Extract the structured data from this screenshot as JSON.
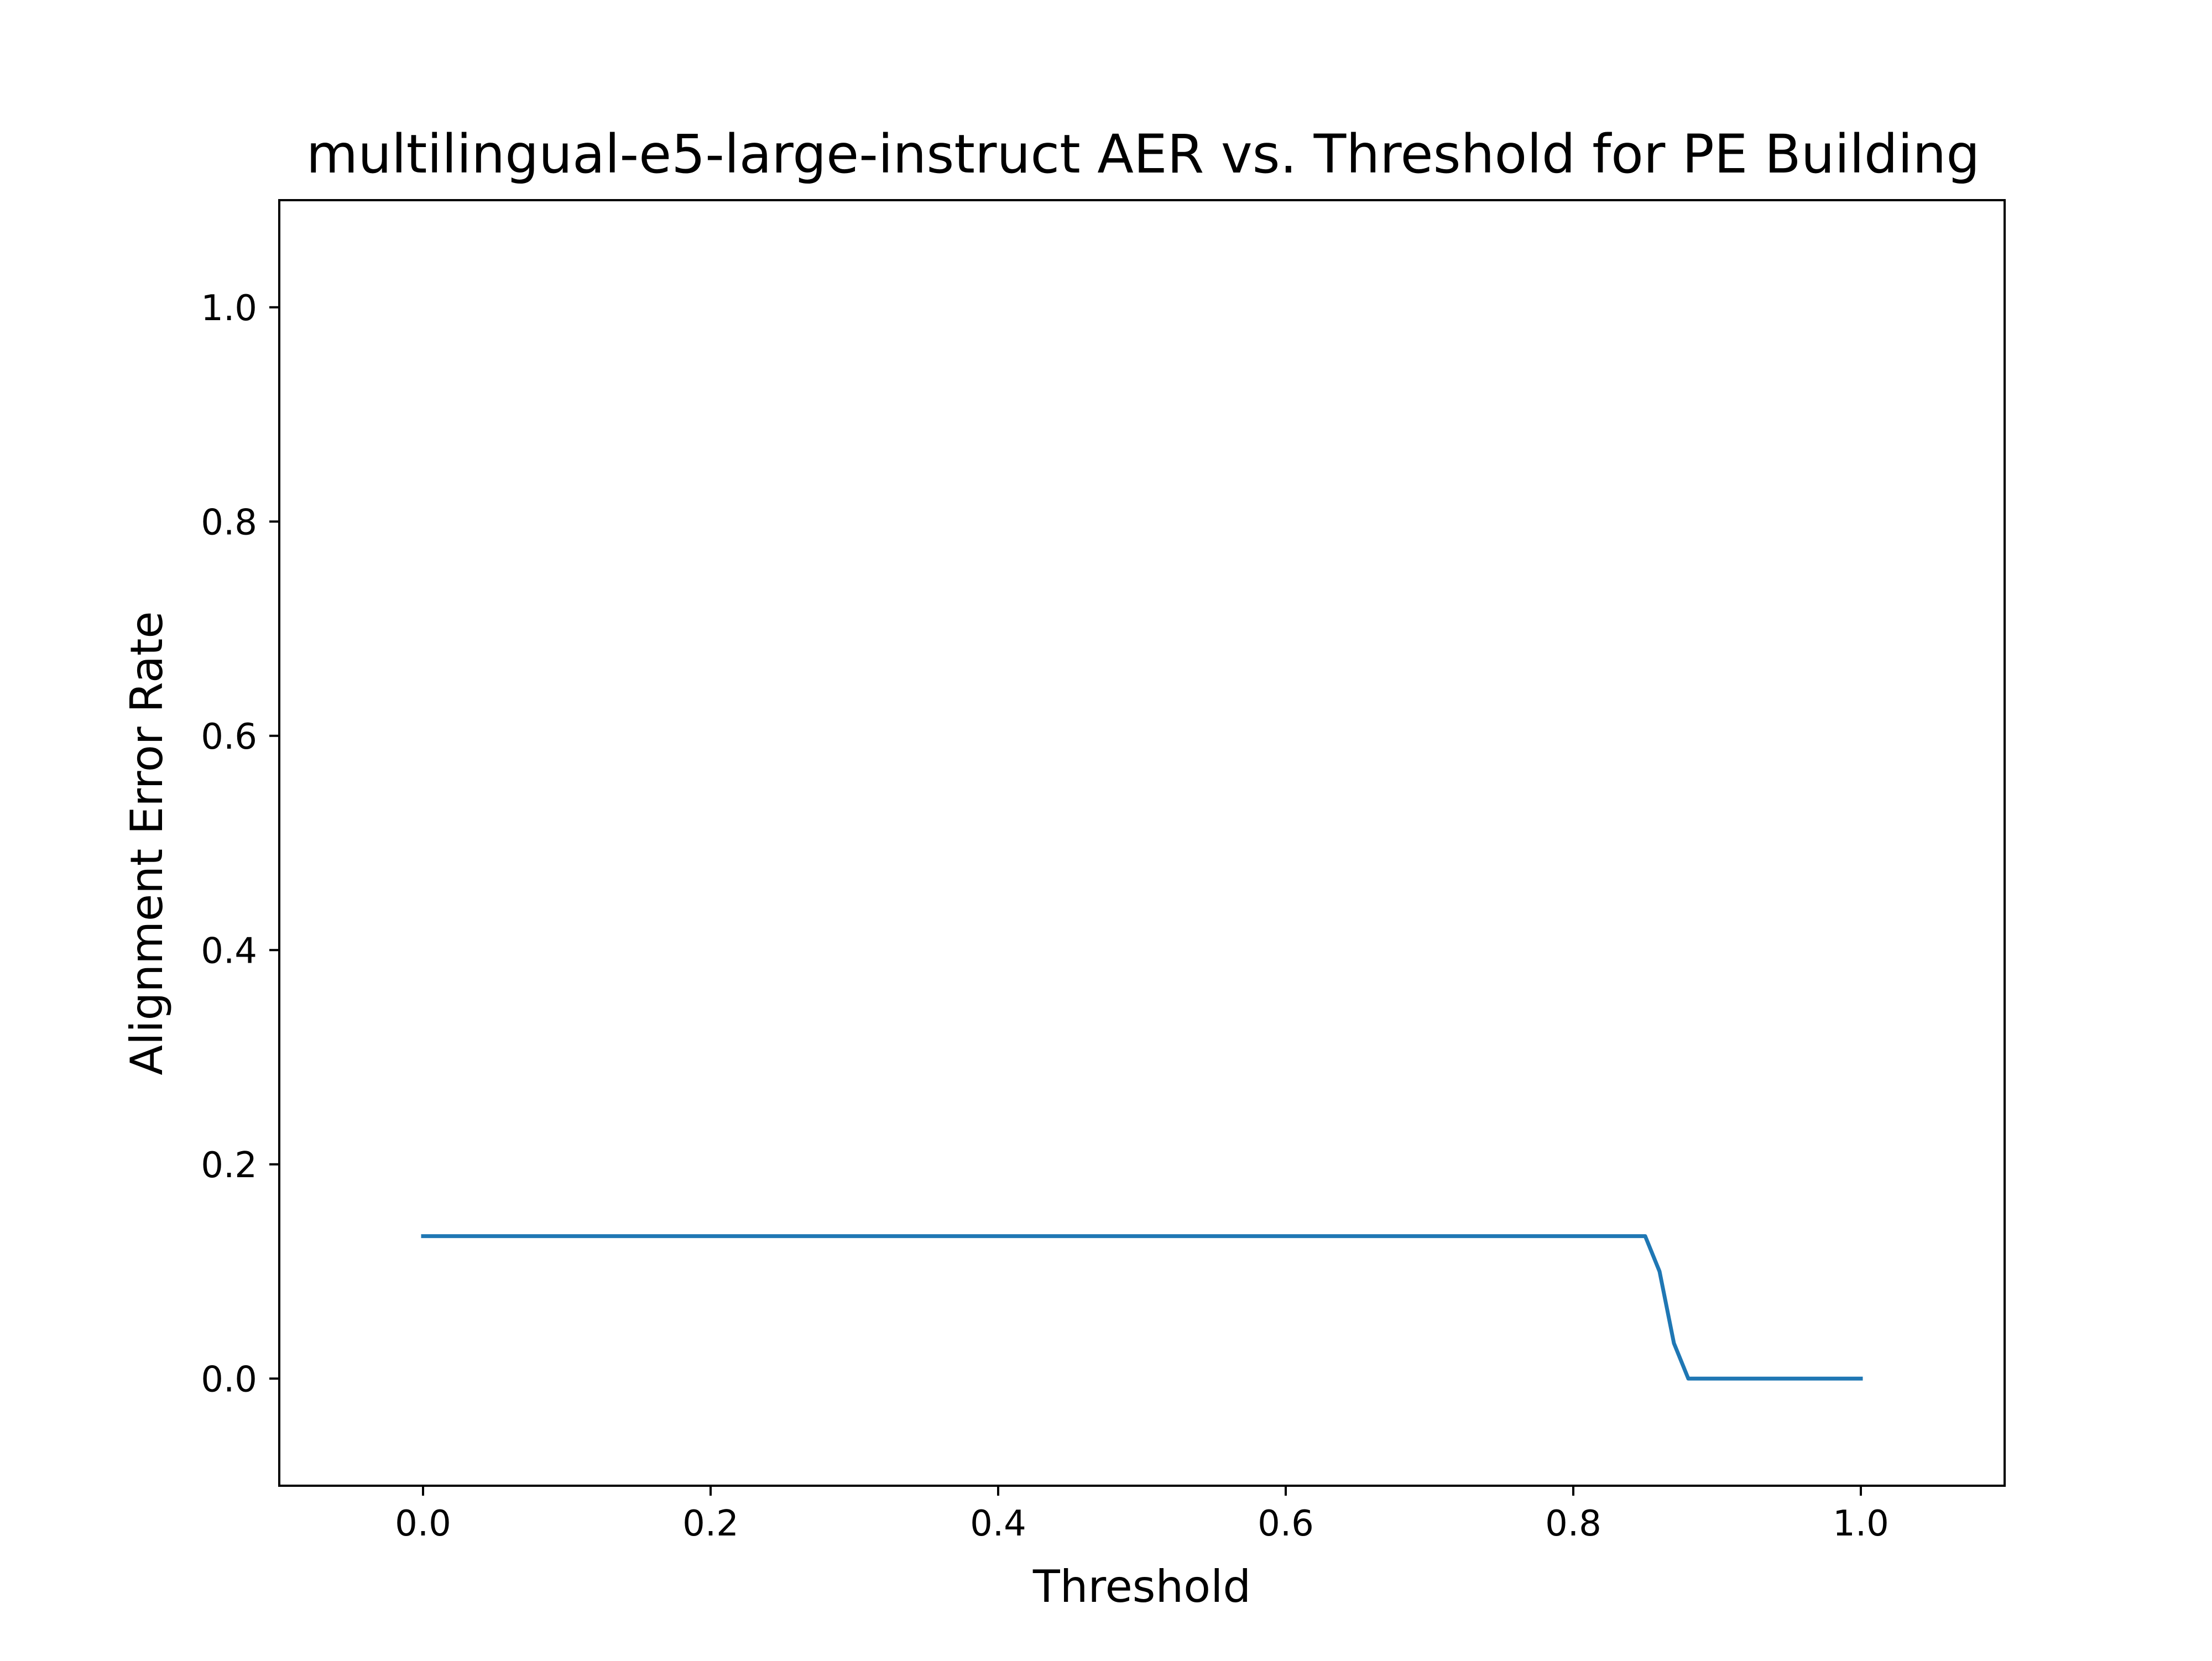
{
  "chart_data": {
    "type": "line",
    "title": "multilingual-e5-large-instruct AER vs. Threshold for PE Building",
    "xlabel": "Threshold",
    "ylabel": "Alignment Error Rate",
    "xlim": [
      -0.1,
      1.1
    ],
    "ylim": [
      -0.1,
      1.1
    ],
    "xticks": [
      0.0,
      0.2,
      0.4,
      0.6,
      0.8,
      1.0
    ],
    "yticks": [
      0.0,
      0.2,
      0.4,
      0.6,
      0.8,
      1.0
    ],
    "xtick_labels": [
      "0.0",
      "0.2",
      "0.4",
      "0.6",
      "0.8",
      "1.0"
    ],
    "ytick_labels": [
      "0.0",
      "0.2",
      "0.4",
      "0.6",
      "0.8",
      "1.0"
    ],
    "grid": false,
    "series": [
      {
        "color": "#1f77b4",
        "x": [
          0.0,
          0.85,
          0.86,
          0.87,
          0.88,
          0.89,
          0.9,
          0.95,
          1.0
        ],
        "y": [
          0.133,
          0.133,
          0.1,
          0.033,
          0.0,
          0.0,
          0.0,
          0.0,
          0.0
        ]
      }
    ]
  }
}
